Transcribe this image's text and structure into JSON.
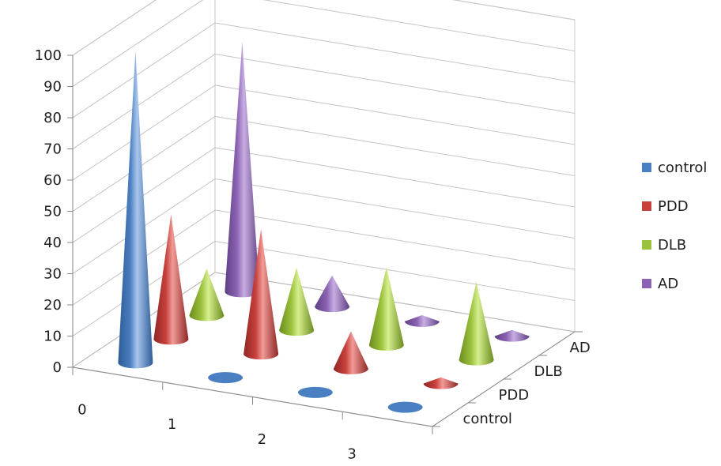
{
  "chart_data": {
    "type": "bar",
    "shape": "cone",
    "view": "3d",
    "categories": [
      "0",
      "1",
      "2",
      "3"
    ],
    "depth_categories": [
      "control",
      "PDD",
      "DLB",
      "AD"
    ],
    "series": [
      {
        "name": "control",
        "color": "#4a7fc1",
        "dark": "#2d5b96",
        "light": "#a8c6ec",
        "values": [
          100,
          0,
          0,
          0
        ]
      },
      {
        "name": "PDD",
        "color": "#c8403c",
        "dark": "#8e2624",
        "light": "#f19b97",
        "values": [
          40,
          40,
          12,
          2
        ]
      },
      {
        "name": "DLB",
        "color": "#9bc23c",
        "dark": "#6b8c1f",
        "light": "#d6ef8f",
        "values": [
          15,
          20,
          25,
          25
        ]
      },
      {
        "name": "AD",
        "color": "#8c63b3",
        "dark": "#5e3f82",
        "light": "#c8aee3",
        "values": [
          80,
          10,
          2,
          2
        ]
      }
    ],
    "yticks": [
      "0",
      "10",
      "20",
      "30",
      "40",
      "50",
      "60",
      "70",
      "80",
      "90",
      "100"
    ],
    "ylim": [
      0,
      100
    ],
    "grid": true,
    "legend_position": "right"
  }
}
